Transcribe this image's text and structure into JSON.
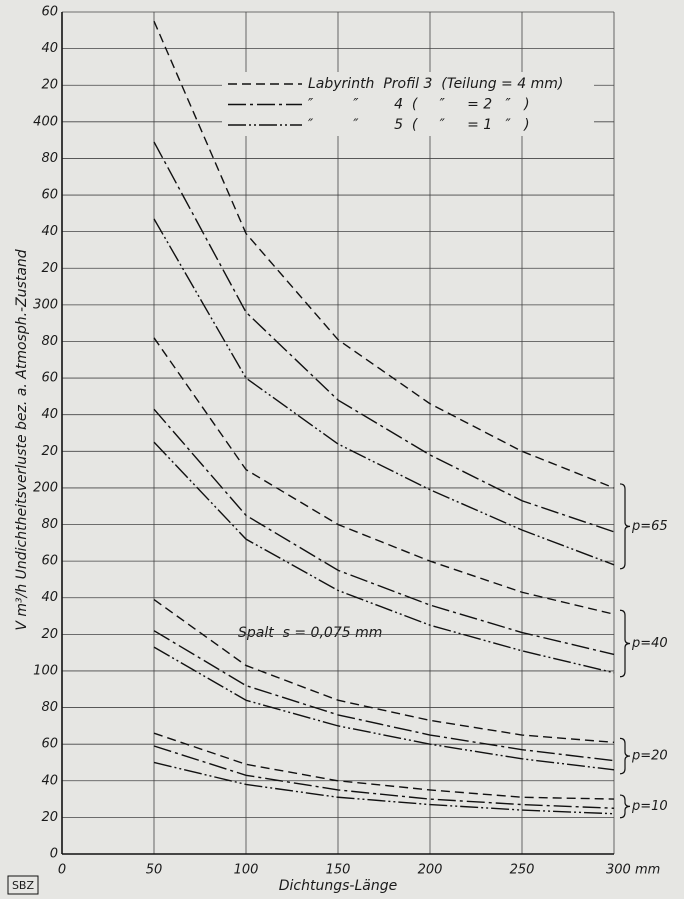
{
  "chart_data": {
    "type": "line",
    "x_label": "Dichtungs-Länge",
    "y_label": "V m³/h Undichtheitsverluste bez. a. Atmosph.-Zustand",
    "annotation": "Spalt  s = 0,075 mm",
    "stamp": "SBZ",
    "color": "#111111",
    "grid": true,
    "xlim": [
      0,
      300
    ],
    "ylim": [
      0,
      460
    ],
    "xticks": [
      0,
      50,
      100,
      150,
      200,
      250,
      {
        "value": 300,
        "label": "300 mm"
      }
    ],
    "yticks": [
      0,
      20,
      40,
      60,
      80,
      100,
      {
        "value": 120,
        "label": "20"
      },
      {
        "value": 140,
        "label": "40"
      },
      {
        "value": 160,
        "label": "60"
      },
      {
        "value": 180,
        "label": "80"
      },
      200,
      {
        "value": 220,
        "label": "20"
      },
      {
        "value": 240,
        "label": "40"
      },
      {
        "value": 260,
        "label": "60"
      },
      {
        "value": 280,
        "label": "80"
      },
      300,
      {
        "value": 320,
        "label": "20"
      },
      {
        "value": 340,
        "label": "40"
      },
      {
        "value": 360,
        "label": "60"
      },
      {
        "value": 380,
        "label": "80"
      },
      400,
      {
        "value": 420,
        "label": "20"
      },
      {
        "value": 440,
        "label": "40"
      },
      {
        "value": 460,
        "label": "60"
      }
    ],
    "legend": [
      {
        "label": "Labyrinth  Profil 3  (Teilung = 4 mm)",
        "dash": "9 5"
      },
      {
        "label": "″         ″        4  (     ″     = 2   ″   )",
        "dash": "18 4 3 4"
      },
      {
        "label": "″         ″        5  (     ″     = 1   ″   )",
        "dash": "18 3 2 3 2 3"
      }
    ],
    "x": [
      50,
      100,
      150,
      200,
      250,
      300
    ],
    "groups": [
      {
        "label": "p=65",
        "series": [
          {
            "dash": "9 5",
            "values": [
              455,
              339,
              281,
              246,
              220,
              200
            ]
          },
          {
            "dash": "18 4 3 4",
            "values": [
              389,
              296,
              248,
              218,
              193,
              176
            ]
          },
          {
            "dash": "18 3 2 3 2 3",
            "values": [
              347,
              260,
              224,
              199,
              177,
              158
            ]
          }
        ]
      },
      {
        "label": "p=40",
        "series": [
          {
            "dash": "9 5",
            "values": [
              282,
              210,
              180,
              160,
              143,
              131
            ]
          },
          {
            "dash": "18 4 3 4",
            "values": [
              243,
              185,
              155,
              136,
              121,
              109
            ]
          },
          {
            "dash": "18 3 2 3 2 3",
            "values": [
              225,
              172,
              144,
              125,
              111,
              99
            ]
          }
        ]
      },
      {
        "label": "p=20",
        "series": [
          {
            "dash": "9 5",
            "values": [
              139,
              103,
              84,
              73,
              65,
              61
            ]
          },
          {
            "dash": "18 4 3 4",
            "values": [
              122,
              92,
              76,
              65,
              57,
              51
            ]
          },
          {
            "dash": "18 3 2 3 2 3",
            "values": [
              113,
              84,
              70,
              60,
              52,
              46
            ]
          }
        ]
      },
      {
        "label": "p=10",
        "series": [
          {
            "dash": "9 5",
            "values": [
              66,
              49,
              40,
              35,
              31,
              30
            ]
          },
          {
            "dash": "18 4 3 4",
            "values": [
              59,
              43,
              35,
              30,
              27,
              25
            ]
          },
          {
            "dash": "18 3 2 3 2 3",
            "values": [
              50,
              38,
              31,
              27,
              24,
              22
            ]
          }
        ]
      }
    ]
  }
}
